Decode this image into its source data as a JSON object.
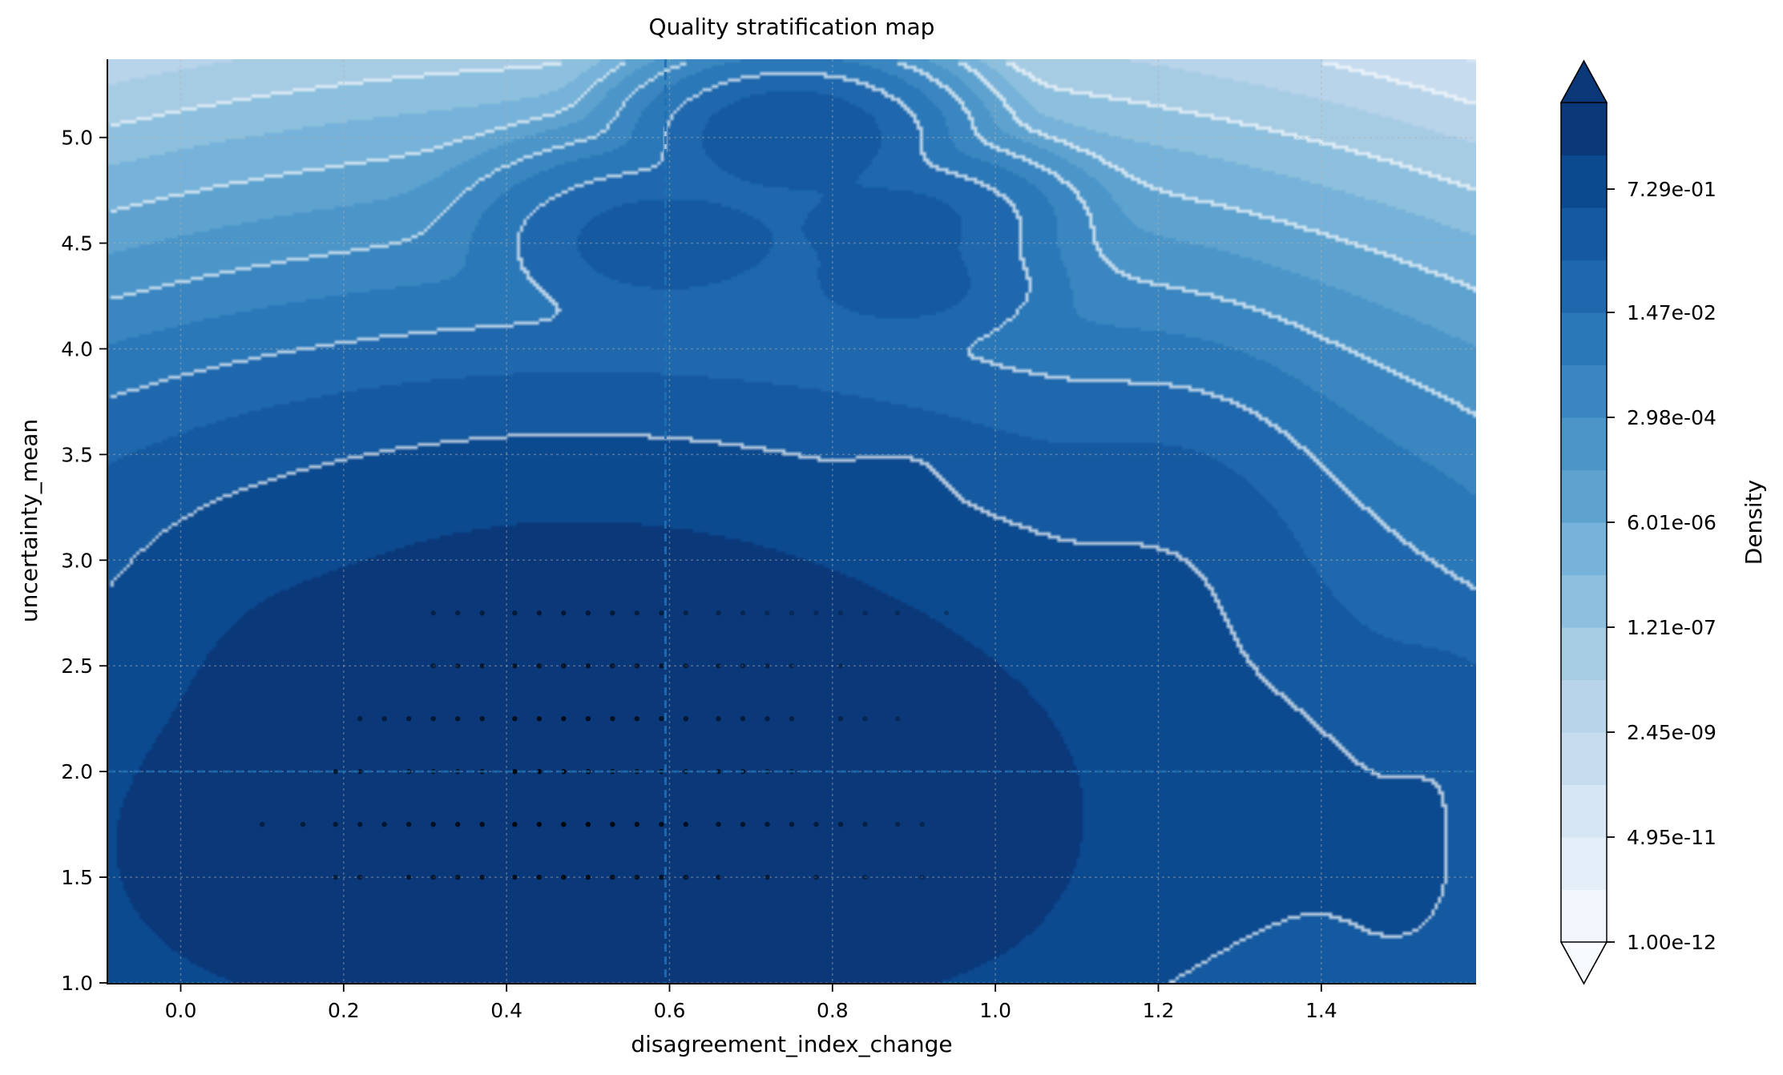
{
  "chart_data": {
    "type": "heatmap",
    "subtype": "filled-contour-density",
    "title": "Quality stratification map",
    "xlabel": "disagreement_index_change",
    "ylabel": "uncertainty_mean",
    "xlim": [
      -0.09,
      1.59
    ],
    "ylim": [
      1.0,
      5.37
    ],
    "xticks": [
      "0.0",
      "0.2",
      "0.4",
      "0.6",
      "0.8",
      "1.0",
      "1.2",
      "1.4"
    ],
    "yticks": [
      "1.0",
      "1.5",
      "2.0",
      "2.5",
      "3.0",
      "3.5",
      "4.0",
      "4.5",
      "5.0"
    ],
    "grid": true,
    "reference_lines": {
      "x": 0.595,
      "y": 2.0
    },
    "colorbar": {
      "label": "Density",
      "scale": "log",
      "min": 1e-12,
      "max": 1.0,
      "levels": 16,
      "extend": "both",
      "tick_labels": [
        "1.00e-12",
        "4.95e-11",
        "2.45e-09",
        "1.21e-07",
        "6.01e-06",
        "2.98e-04",
        "1.47e-02",
        "7.29e-01"
      ]
    },
    "density_clusters": [
      {
        "x": 0.47,
        "y": 1.85,
        "sx": 0.24,
        "sy": 0.55,
        "w": 1.0
      },
      {
        "x": 0.62,
        "y": 1.9,
        "sx": 0.3,
        "sy": 0.6,
        "w": 0.5
      },
      {
        "x": 0.2,
        "y": 1.6,
        "sx": 0.16,
        "sy": 0.35,
        "w": 0.25
      },
      {
        "x": 0.05,
        "y": 1.5,
        "sx": 0.09,
        "sy": 0.3,
        "w": 0.08
      },
      {
        "x": 0.1,
        "y": 2.6,
        "sx": 0.08,
        "sy": 0.3,
        "w": 0.05
      },
      {
        "x": 0.45,
        "y": 2.95,
        "sx": 0.25,
        "sy": 0.35,
        "w": 0.1
      },
      {
        "x": 0.88,
        "y": 3.4,
        "sx": 0.04,
        "sy": 0.1,
        "w": 0.02
      },
      {
        "x": 0.6,
        "y": 4.5,
        "sx": 0.08,
        "sy": 0.15,
        "w": 0.015
      },
      {
        "x": 0.75,
        "y": 5.0,
        "sx": 0.06,
        "sy": 0.12,
        "w": 0.03
      },
      {
        "x": 0.87,
        "y": 4.6,
        "sx": 0.07,
        "sy": 0.12,
        "w": 0.012
      },
      {
        "x": 0.88,
        "y": 4.3,
        "sx": 0.07,
        "sy": 0.12,
        "w": 0.012
      },
      {
        "x": 1.21,
        "y": 2.9,
        "sx": 0.08,
        "sy": 0.35,
        "w": 0.02
      },
      {
        "x": 1.33,
        "y": 1.85,
        "sx": 0.09,
        "sy": 0.3,
        "w": 0.03
      },
      {
        "x": 1.5,
        "y": 1.4,
        "sx": 0.07,
        "sy": 0.3,
        "w": 0.03
      },
      {
        "x": 1.55,
        "y": 2.0,
        "sx": 0.06,
        "sy": 0.3,
        "w": 0.02
      },
      {
        "x": 1.25,
        "y": 1.7,
        "sx": 0.12,
        "sy": 0.45,
        "w": 0.015
      },
      {
        "x": 0.95,
        "y": 1.4,
        "sx": 0.1,
        "sy": 0.3,
        "w": 0.08
      },
      {
        "x": 0.15,
        "y": 1.2,
        "sx": 0.1,
        "sy": 0.15,
        "w": 0.04
      }
    ],
    "scatter_points": [
      [
        0.1,
        1.75
      ],
      [
        0.15,
        1.75
      ],
      [
        0.19,
        1.75
      ],
      [
        0.22,
        1.75
      ],
      [
        0.25,
        1.75
      ],
      [
        0.28,
        1.75
      ],
      [
        0.31,
        1.75
      ],
      [
        0.34,
        1.75
      ],
      [
        0.37,
        1.75
      ],
      [
        0.41,
        1.75
      ],
      [
        0.44,
        1.75
      ],
      [
        0.47,
        1.75
      ],
      [
        0.5,
        1.75
      ],
      [
        0.53,
        1.75
      ],
      [
        0.56,
        1.75
      ],
      [
        0.59,
        1.75
      ],
      [
        0.62,
        1.75
      ],
      [
        0.66,
        1.75
      ],
      [
        0.69,
        1.75
      ],
      [
        0.72,
        1.75
      ],
      [
        0.75,
        1.75
      ],
      [
        0.78,
        1.75
      ],
      [
        0.81,
        1.75
      ],
      [
        0.84,
        1.75
      ],
      [
        0.88,
        1.75
      ],
      [
        0.91,
        1.75
      ],
      [
        0.19,
        2.0
      ],
      [
        0.22,
        2.0
      ],
      [
        0.28,
        2.0
      ],
      [
        0.31,
        2.0
      ],
      [
        0.34,
        2.0
      ],
      [
        0.37,
        2.0
      ],
      [
        0.41,
        2.0
      ],
      [
        0.44,
        2.0
      ],
      [
        0.47,
        2.0
      ],
      [
        0.5,
        2.0
      ],
      [
        0.53,
        2.0
      ],
      [
        0.56,
        2.0
      ],
      [
        0.59,
        2.0
      ],
      [
        0.62,
        2.0
      ],
      [
        0.66,
        2.0
      ],
      [
        0.69,
        2.0
      ],
      [
        0.72,
        2.0
      ],
      [
        0.75,
        2.0
      ],
      [
        0.19,
        1.5
      ],
      [
        0.22,
        1.5
      ],
      [
        0.28,
        1.5
      ],
      [
        0.31,
        1.5
      ],
      [
        0.34,
        1.5
      ],
      [
        0.37,
        1.5
      ],
      [
        0.41,
        1.5
      ],
      [
        0.44,
        1.5
      ],
      [
        0.47,
        1.5
      ],
      [
        0.5,
        1.5
      ],
      [
        0.53,
        1.5
      ],
      [
        0.56,
        1.5
      ],
      [
        0.59,
        1.5
      ],
      [
        0.62,
        1.5
      ],
      [
        0.66,
        1.5
      ],
      [
        0.72,
        1.5
      ],
      [
        0.78,
        1.5
      ],
      [
        0.84,
        1.5
      ],
      [
        0.91,
        1.5
      ],
      [
        0.22,
        2.25
      ],
      [
        0.25,
        2.25
      ],
      [
        0.28,
        2.25
      ],
      [
        0.31,
        2.25
      ],
      [
        0.34,
        2.25
      ],
      [
        0.37,
        2.25
      ],
      [
        0.41,
        2.25
      ],
      [
        0.44,
        2.25
      ],
      [
        0.47,
        2.25
      ],
      [
        0.5,
        2.25
      ],
      [
        0.53,
        2.25
      ],
      [
        0.56,
        2.25
      ],
      [
        0.59,
        2.25
      ],
      [
        0.62,
        2.25
      ],
      [
        0.66,
        2.25
      ],
      [
        0.69,
        2.25
      ],
      [
        0.72,
        2.25
      ],
      [
        0.75,
        2.25
      ],
      [
        0.81,
        2.25
      ],
      [
        0.84,
        2.25
      ],
      [
        0.88,
        2.25
      ],
      [
        0.31,
        2.5
      ],
      [
        0.34,
        2.5
      ],
      [
        0.37,
        2.5
      ],
      [
        0.41,
        2.5
      ],
      [
        0.44,
        2.5
      ],
      [
        0.47,
        2.5
      ],
      [
        0.5,
        2.5
      ],
      [
        0.53,
        2.5
      ],
      [
        0.56,
        2.5
      ],
      [
        0.59,
        2.5
      ],
      [
        0.62,
        2.5
      ],
      [
        0.66,
        2.5
      ],
      [
        0.69,
        2.5
      ],
      [
        0.72,
        2.5
      ],
      [
        0.75,
        2.5
      ],
      [
        0.81,
        2.5
      ],
      [
        0.31,
        2.75
      ],
      [
        0.34,
        2.75
      ],
      [
        0.37,
        2.75
      ],
      [
        0.41,
        2.75
      ],
      [
        0.44,
        2.75
      ],
      [
        0.47,
        2.75
      ],
      [
        0.5,
        2.75
      ],
      [
        0.53,
        2.75
      ],
      [
        0.56,
        2.75
      ],
      [
        0.59,
        2.75
      ],
      [
        0.62,
        2.75
      ],
      [
        0.66,
        2.75
      ],
      [
        0.69,
        2.75
      ],
      [
        0.72,
        2.75
      ],
      [
        0.75,
        2.75
      ],
      [
        0.78,
        2.75
      ],
      [
        0.81,
        2.75
      ],
      [
        0.84,
        2.75
      ],
      [
        0.88,
        2.75
      ],
      [
        0.94,
        2.75
      ]
    ]
  }
}
